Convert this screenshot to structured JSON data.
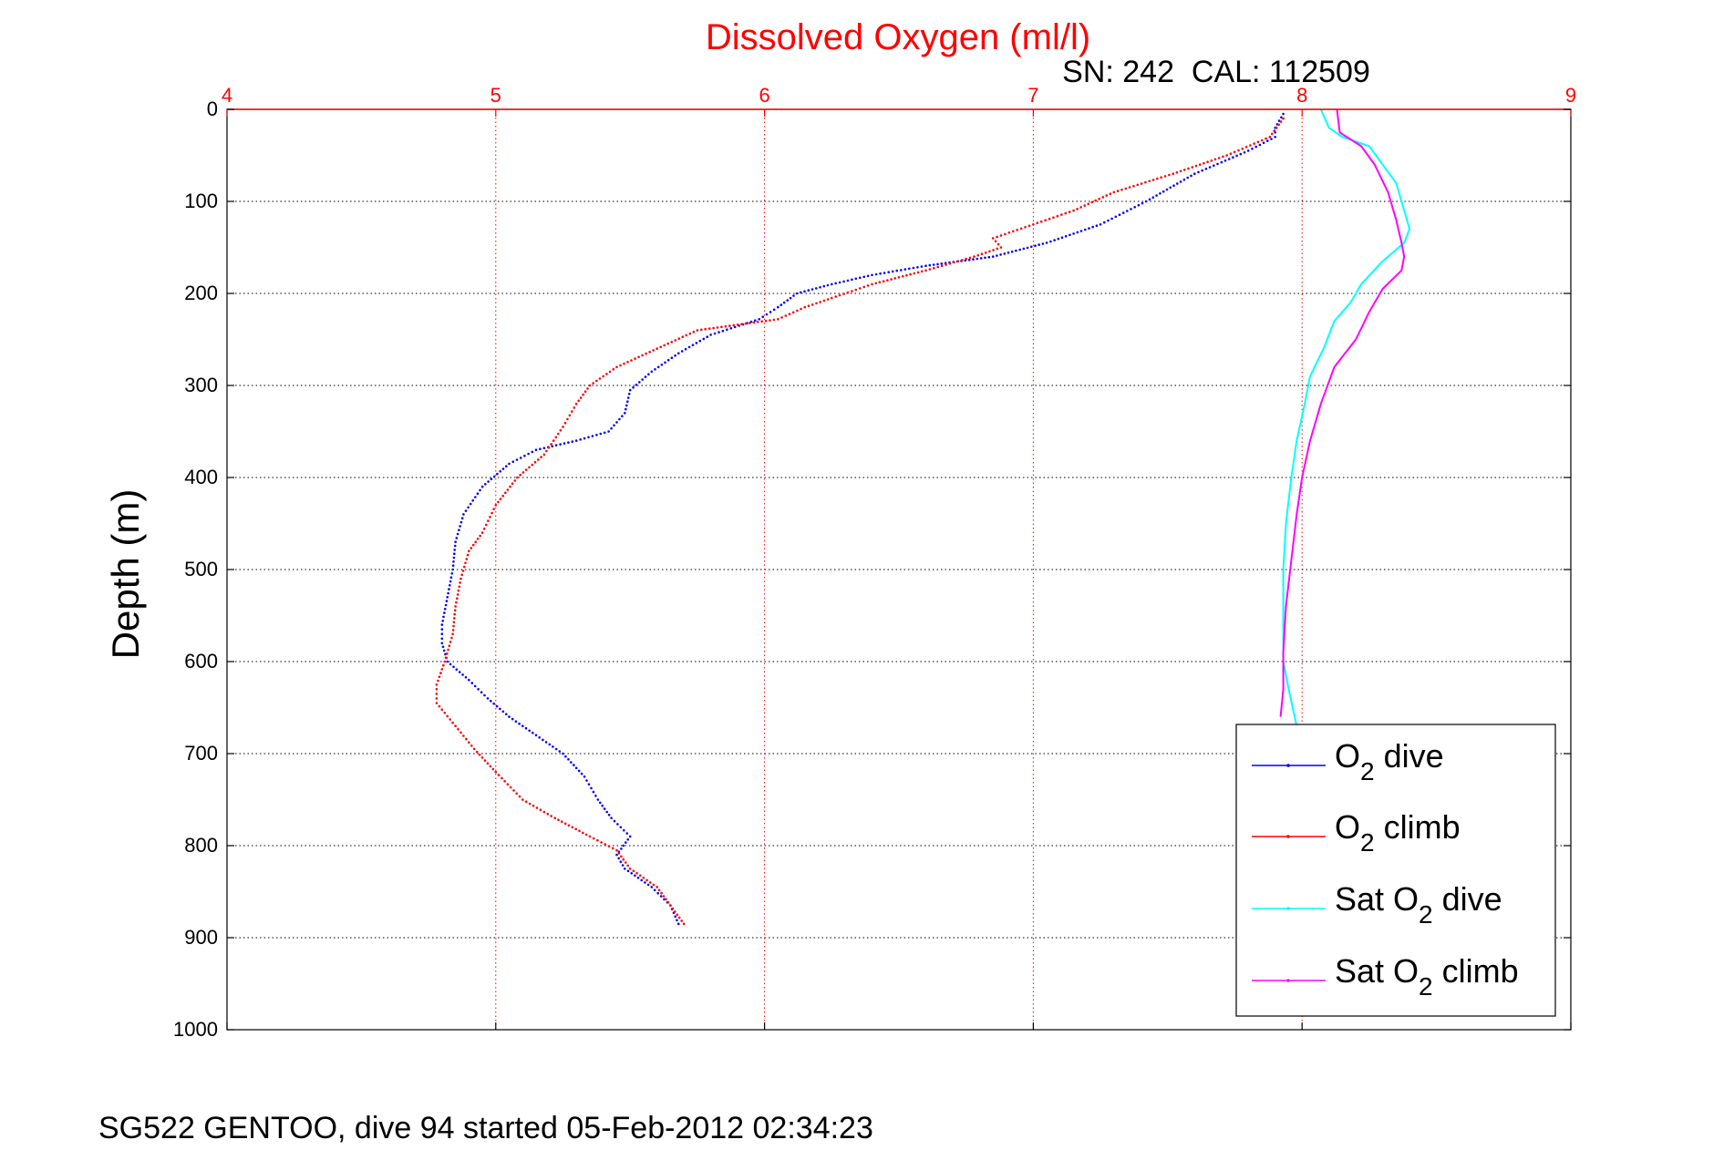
{
  "chart_data": {
    "type": "line",
    "title": "Dissolved Oxygen (ml/l)",
    "subtitle": "SN: 242  CAL: 112509",
    "footer": "SG522 GENTOO, dive 94 started 05-Feb-2012 02:34:23",
    "ylabel": "Depth (m)",
    "xlim": [
      4,
      9
    ],
    "ylim": [
      0,
      1000
    ],
    "y_reversed": true,
    "x_axis_position": "top",
    "x_ticks": [
      4,
      5,
      6,
      7,
      8,
      9
    ],
    "x_tick_labels": [
      "4",
      "5",
      "6",
      "7",
      "8",
      "9"
    ],
    "y_ticks": [
      0,
      100,
      200,
      300,
      400,
      500,
      600,
      700,
      800,
      900,
      1000
    ],
    "y_tick_labels": [
      "0",
      "100",
      "200",
      "300",
      "400",
      "500",
      "600",
      "700",
      "800",
      "900",
      "1000"
    ],
    "grid": true,
    "legend_position": "bottom-right",
    "colors": {
      "title": "#ff0000",
      "x_axis": "#ff0000",
      "grid_x": "#ff0000",
      "grid_y": "#000000"
    },
    "series": [
      {
        "name": "O2 dive",
        "legend_main": "O",
        "legend_sub": "2",
        "legend_rest": " dive",
        "color": "#0000ff",
        "style": "dots",
        "points": [
          [
            7.93,
            5
          ],
          [
            7.9,
            20
          ],
          [
            7.9,
            30
          ],
          [
            7.8,
            45
          ],
          [
            7.6,
            70
          ],
          [
            7.42,
            100
          ],
          [
            7.25,
            125
          ],
          [
            7.05,
            145
          ],
          [
            6.85,
            160
          ],
          [
            6.6,
            170
          ],
          [
            6.4,
            180
          ],
          [
            6.25,
            190
          ],
          [
            6.12,
            200
          ],
          [
            6.05,
            215
          ],
          [
            5.98,
            228
          ],
          [
            5.8,
            245
          ],
          [
            5.68,
            265
          ],
          [
            5.58,
            285
          ],
          [
            5.5,
            305
          ],
          [
            5.48,
            330
          ],
          [
            5.42,
            350
          ],
          [
            5.3,
            360
          ],
          [
            5.15,
            370
          ],
          [
            5.05,
            385
          ],
          [
            4.95,
            410
          ],
          [
            4.88,
            440
          ],
          [
            4.85,
            470
          ],
          [
            4.84,
            500
          ],
          [
            4.82,
            530
          ],
          [
            4.8,
            560
          ],
          [
            4.8,
            580
          ],
          [
            4.82,
            600
          ],
          [
            4.9,
            620
          ],
          [
            4.97,
            640
          ],
          [
            5.05,
            660
          ],
          [
            5.15,
            680
          ],
          [
            5.25,
            700
          ],
          [
            5.33,
            725
          ],
          [
            5.38,
            750
          ],
          [
            5.43,
            770
          ],
          [
            5.5,
            790
          ],
          [
            5.45,
            810
          ],
          [
            5.48,
            825
          ],
          [
            5.58,
            845
          ],
          [
            5.65,
            865
          ],
          [
            5.68,
            885
          ]
        ]
      },
      {
        "name": "O2 climb",
        "legend_main": "O",
        "legend_sub": "2",
        "legend_rest": " climb",
        "color": "#ff0000",
        "style": "dots",
        "points": [
          [
            7.93,
            10
          ],
          [
            7.88,
            30
          ],
          [
            7.72,
            50
          ],
          [
            7.52,
            70
          ],
          [
            7.3,
            90
          ],
          [
            7.15,
            110
          ],
          [
            7.0,
            125
          ],
          [
            6.85,
            140
          ],
          [
            6.88,
            150
          ],
          [
            6.78,
            160
          ],
          [
            6.6,
            175
          ],
          [
            6.4,
            190
          ],
          [
            6.25,
            205
          ],
          [
            6.15,
            215
          ],
          [
            6.05,
            228
          ],
          [
            5.75,
            240
          ],
          [
            5.6,
            260
          ],
          [
            5.45,
            280
          ],
          [
            5.35,
            300
          ],
          [
            5.3,
            320
          ],
          [
            5.25,
            345
          ],
          [
            5.18,
            375
          ],
          [
            5.08,
            400
          ],
          [
            5.0,
            430
          ],
          [
            4.95,
            460
          ],
          [
            4.9,
            480
          ],
          [
            4.87,
            510
          ],
          [
            4.85,
            540
          ],
          [
            4.84,
            570
          ],
          [
            4.81,
            600
          ],
          [
            4.78,
            625
          ],
          [
            4.78,
            645
          ],
          [
            4.85,
            670
          ],
          [
            4.92,
            695
          ],
          [
            5.0,
            720
          ],
          [
            5.1,
            750
          ],
          [
            5.22,
            770
          ],
          [
            5.35,
            790
          ],
          [
            5.45,
            805
          ],
          [
            5.5,
            825
          ],
          [
            5.6,
            845
          ],
          [
            5.65,
            865
          ],
          [
            5.7,
            885
          ]
        ]
      },
      {
        "name": "Sat O2 dive",
        "legend_main": "Sat O",
        "legend_sub": "2",
        "legend_rest": " dive",
        "color": "#00ffff",
        "style": "line",
        "points": [
          [
            8.07,
            0
          ],
          [
            8.1,
            20
          ],
          [
            8.15,
            30
          ],
          [
            8.25,
            40
          ],
          [
            8.3,
            60
          ],
          [
            8.35,
            80
          ],
          [
            8.37,
            100
          ],
          [
            8.39,
            120
          ],
          [
            8.4,
            130
          ],
          [
            8.38,
            145
          ],
          [
            8.3,
            165
          ],
          [
            8.22,
            190
          ],
          [
            8.18,
            210
          ],
          [
            8.12,
            230
          ],
          [
            8.08,
            260
          ],
          [
            8.03,
            290
          ],
          [
            8.01,
            320
          ],
          [
            7.98,
            360
          ],
          [
            7.96,
            400
          ],
          [
            7.94,
            450
          ],
          [
            7.93,
            500
          ],
          [
            7.93,
            550
          ],
          [
            7.93,
            600
          ],
          [
            7.95,
            630
          ],
          [
            7.98,
            670
          ]
        ]
      },
      {
        "name": "Sat O2 climb",
        "legend_main": "Sat O",
        "legend_sub": "2",
        "legend_rest": " climb",
        "color": "#ff00ff",
        "style": "line",
        "points": [
          [
            8.13,
            0
          ],
          [
            8.14,
            25
          ],
          [
            8.22,
            40
          ],
          [
            8.27,
            60
          ],
          [
            8.32,
            90
          ],
          [
            8.35,
            120
          ],
          [
            8.37,
            145
          ],
          [
            8.38,
            160
          ],
          [
            8.37,
            175
          ],
          [
            8.3,
            195
          ],
          [
            8.25,
            220
          ],
          [
            8.2,
            250
          ],
          [
            8.12,
            280
          ],
          [
            8.07,
            320
          ],
          [
            8.03,
            360
          ],
          [
            8.0,
            400
          ],
          [
            7.98,
            440
          ],
          [
            7.96,
            490
          ],
          [
            7.94,
            540
          ],
          [
            7.93,
            590
          ],
          [
            7.93,
            630
          ],
          [
            7.92,
            660
          ]
        ]
      }
    ]
  }
}
